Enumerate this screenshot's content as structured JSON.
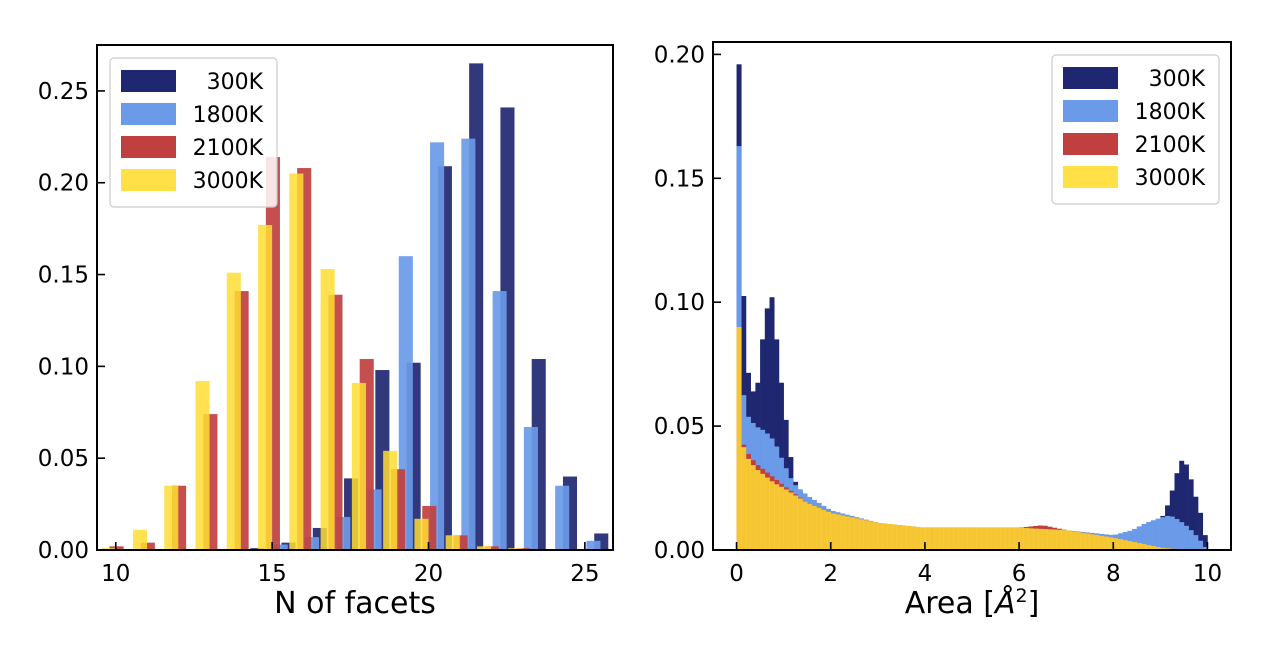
{
  "chart_data": [
    {
      "type": "bar",
      "title": "",
      "xlabel": "N of facets",
      "ylabel": "",
      "xlim": [
        9.4,
        25.9
      ],
      "ylim": [
        0,
        0.275
      ],
      "xticks": [
        10,
        15,
        20,
        25
      ],
      "yticks": [
        0.0,
        0.05,
        0.1,
        0.15,
        0.2,
        0.25
      ],
      "bar_width": 0.45,
      "grid": false,
      "legend_position": "top-left",
      "series": [
        {
          "name": "300K",
          "color": "#1f2770",
          "offset": 0.3,
          "x": [
            14,
            15,
            16,
            17,
            18,
            19,
            20,
            21,
            22,
            23,
            24,
            25
          ],
          "values": [
            0.001,
            0.004,
            0.012,
            0.039,
            0.098,
            0.102,
            0.209,
            0.265,
            0.241,
            0.104,
            0.04,
            0.009
          ]
        },
        {
          "name": "1800K",
          "color": "#6a9ae8",
          "offset": 0.05,
          "x": [
            14,
            15,
            16,
            17,
            18,
            19,
            20,
            21,
            22,
            23,
            24,
            25
          ],
          "values": [
            0.0005,
            0.003,
            0.007,
            0.018,
            0.033,
            0.16,
            0.222,
            0.224,
            0.141,
            0.067,
            0.035,
            0.005
          ]
        },
        {
          "name": "2100K",
          "color": "#c0403f",
          "offset": -0.2,
          "x": [
            10,
            11,
            12,
            13,
            14,
            15,
            16,
            17,
            18,
            19,
            20,
            21,
            22,
            23,
            24
          ],
          "values": [
            0.002,
            0.004,
            0.035,
            0.074,
            0.141,
            0.214,
            0.208,
            0.139,
            0.104,
            0.044,
            0.024,
            0.008,
            0.002,
            0.001,
            0.0005
          ]
        },
        {
          "name": "3000K",
          "color": "#ffdd33",
          "offset": -0.45,
          "opacity": 0.85,
          "x": [
            10,
            11,
            12,
            13,
            14,
            15,
            16,
            17,
            18,
            19,
            20,
            21,
            22,
            23,
            24
          ],
          "values": [
            0.001,
            0.011,
            0.035,
            0.092,
            0.151,
            0.177,
            0.205,
            0.153,
            0.091,
            0.054,
            0.017,
            0.008,
            0.002,
            0.001,
            0.0005
          ]
        }
      ]
    },
    {
      "type": "bar",
      "title": "",
      "xlabel": "Area [Å²]",
      "xlabel_main": "Area [",
      "xlabel_unit": "Å",
      "xlabel_sup": "2",
      "xlabel_close": "]",
      "ylabel": "",
      "xlim": [
        -0.5,
        10.5
      ],
      "ylim": [
        0,
        0.205
      ],
      "xticks": [
        0,
        2,
        4,
        6,
        8,
        10
      ],
      "yticks": [
        0.0,
        0.05,
        0.1,
        0.15,
        0.2
      ],
      "bin_width": 0.1,
      "grid": false,
      "legend_position": "top-right",
      "series": [
        {
          "name": "300K",
          "color": "#1f2770",
          "points": [
            [
              0,
              0.16
            ],
            [
              0.05,
              0.196
            ],
            [
              0.1,
              0.13
            ],
            [
              0.2,
              0.075
            ],
            [
              0.3,
              0.068
            ],
            [
              0.4,
              0.06
            ],
            [
              0.5,
              0.075
            ],
            [
              0.6,
              0.095
            ],
            [
              0.7,
              0.1
            ],
            [
              0.75,
              0.102
            ],
            [
              0.8,
              0.095
            ],
            [
              0.9,
              0.075
            ],
            [
              1.0,
              0.06
            ],
            [
              1.1,
              0.045
            ],
            [
              1.2,
              0.03
            ],
            [
              1.3,
              0.025
            ],
            [
              1.5,
              0.02
            ],
            [
              2,
              0.014
            ],
            [
              3,
              0.01
            ],
            [
              4,
              0.009
            ],
            [
              5,
              0.009
            ],
            [
              6,
              0.008
            ],
            [
              7,
              0.007
            ],
            [
              8,
              0.006
            ],
            [
              8.6,
              0.007
            ],
            [
              8.9,
              0.01
            ],
            [
              9.1,
              0.015
            ],
            [
              9.3,
              0.027
            ],
            [
              9.4,
              0.035
            ],
            [
              9.5,
              0.037
            ],
            [
              9.6,
              0.032
            ],
            [
              9.7,
              0.025
            ],
            [
              9.8,
              0.018
            ],
            [
              9.9,
              0.012
            ],
            [
              10,
              0.0
            ]
          ]
        },
        {
          "name": "1800K",
          "color": "#6a9ae8",
          "points": [
            [
              0,
              0.163
            ],
            [
              0.05,
              0.163
            ],
            [
              0.1,
              0.07
            ],
            [
              0.2,
              0.055
            ],
            [
              0.4,
              0.05
            ],
            [
              0.6,
              0.048
            ],
            [
              0.8,
              0.044
            ],
            [
              1.0,
              0.035
            ],
            [
              1.2,
              0.027
            ],
            [
              1.5,
              0.022
            ],
            [
              2,
              0.016
            ],
            [
              3,
              0.011
            ],
            [
              4,
              0.009
            ],
            [
              5,
              0.009
            ],
            [
              6,
              0.009
            ],
            [
              7,
              0.008
            ],
            [
              8,
              0.006
            ],
            [
              8.4,
              0.008
            ],
            [
              8.7,
              0.011
            ],
            [
              9.0,
              0.013
            ],
            [
              9.2,
              0.014
            ],
            [
              9.4,
              0.012
            ],
            [
              9.6,
              0.009
            ],
            [
              9.8,
              0.005
            ],
            [
              10,
              0.0
            ]
          ]
        },
        {
          "name": "2100K",
          "color": "#c0403f",
          "points": [
            [
              0,
              0.105
            ],
            [
              0.05,
              0.09
            ],
            [
              0.1,
              0.045
            ],
            [
              0.2,
              0.04
            ],
            [
              0.4,
              0.035
            ],
            [
              0.6,
              0.032
            ],
            [
              0.8,
              0.029
            ],
            [
              1.0,
              0.026
            ],
            [
              1.5,
              0.019
            ],
            [
              2,
              0.015
            ],
            [
              3,
              0.011
            ],
            [
              4,
              0.009
            ],
            [
              5,
              0.009
            ],
            [
              6,
              0.009
            ],
            [
              6.5,
              0.01
            ],
            [
              7,
              0.008
            ],
            [
              8,
              0.005
            ],
            [
              8.5,
              0.003
            ],
            [
              9,
              0.001
            ],
            [
              9.5,
              0.0
            ]
          ]
        },
        {
          "name": "3000K",
          "color": "#ffdd33",
          "opacity": 0.85,
          "points": [
            [
              0,
              0.104
            ],
            [
              0.05,
              0.09
            ],
            [
              0.1,
              0.045
            ],
            [
              0.2,
              0.038
            ],
            [
              0.4,
              0.033
            ],
            [
              0.6,
              0.03
            ],
            [
              0.8,
              0.027
            ],
            [
              1.0,
              0.025
            ],
            [
              1.5,
              0.019
            ],
            [
              2,
              0.015
            ],
            [
              3,
              0.011
            ],
            [
              4,
              0.009
            ],
            [
              5,
              0.009
            ],
            [
              6,
              0.009
            ],
            [
              7,
              0.008
            ],
            [
              8,
              0.005
            ],
            [
              8.5,
              0.003
            ],
            [
              9,
              0.001
            ],
            [
              9.5,
              0.0
            ]
          ]
        }
      ]
    }
  ]
}
